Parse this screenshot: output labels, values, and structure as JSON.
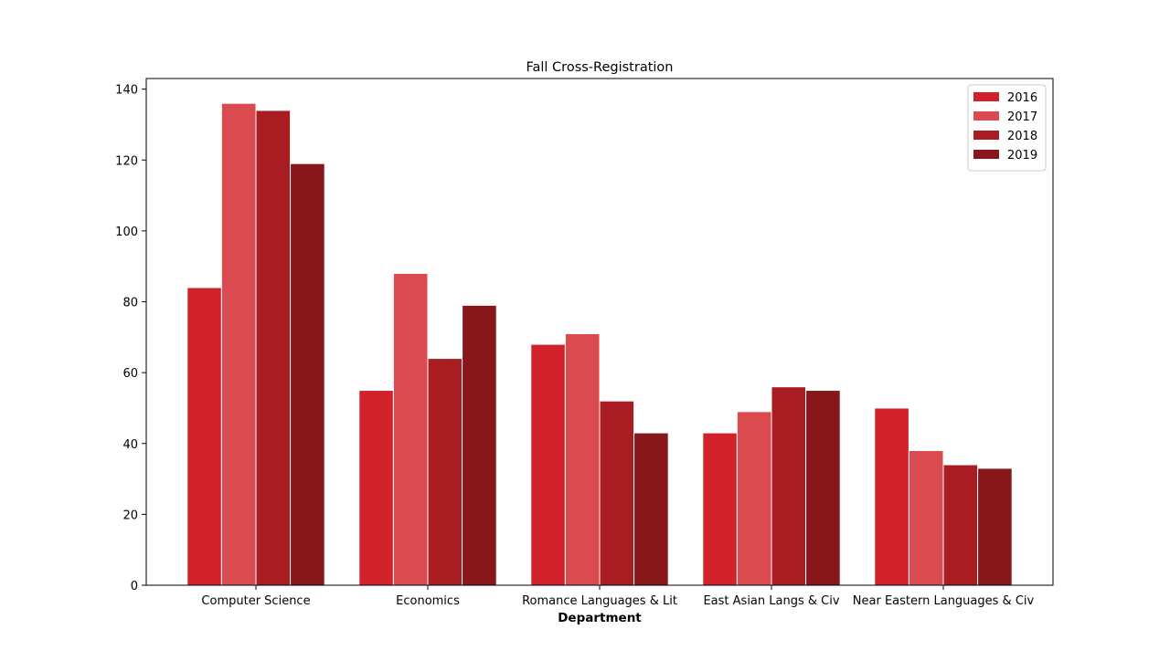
{
  "chart_data": {
    "type": "bar",
    "title": "Fall Cross-Registration",
    "xlabel": "Department",
    "ylabel": "",
    "ylim": [
      0,
      143
    ],
    "yticks": [
      0,
      20,
      40,
      60,
      80,
      100,
      120,
      140
    ],
    "categories": [
      "Computer Science",
      "Economics",
      "Romance Languages & Lit",
      "East Asian Langs & Civ",
      "Near Eastern Languages & Civ"
    ],
    "series": [
      {
        "name": "2016",
        "color": "#d1222b",
        "values": [
          84,
          55,
          68,
          43,
          50
        ]
      },
      {
        "name": "2017",
        "color": "#db4a4f",
        "values": [
          136,
          88,
          71,
          49,
          38
        ]
      },
      {
        "name": "2018",
        "color": "#a91c22",
        "values": [
          134,
          64,
          52,
          56,
          34
        ]
      },
      {
        "name": "2019",
        "color": "#88171b",
        "values": [
          119,
          79,
          43,
          55,
          33
        ]
      }
    ],
    "legend_position": "top-right",
    "grid": false
  }
}
